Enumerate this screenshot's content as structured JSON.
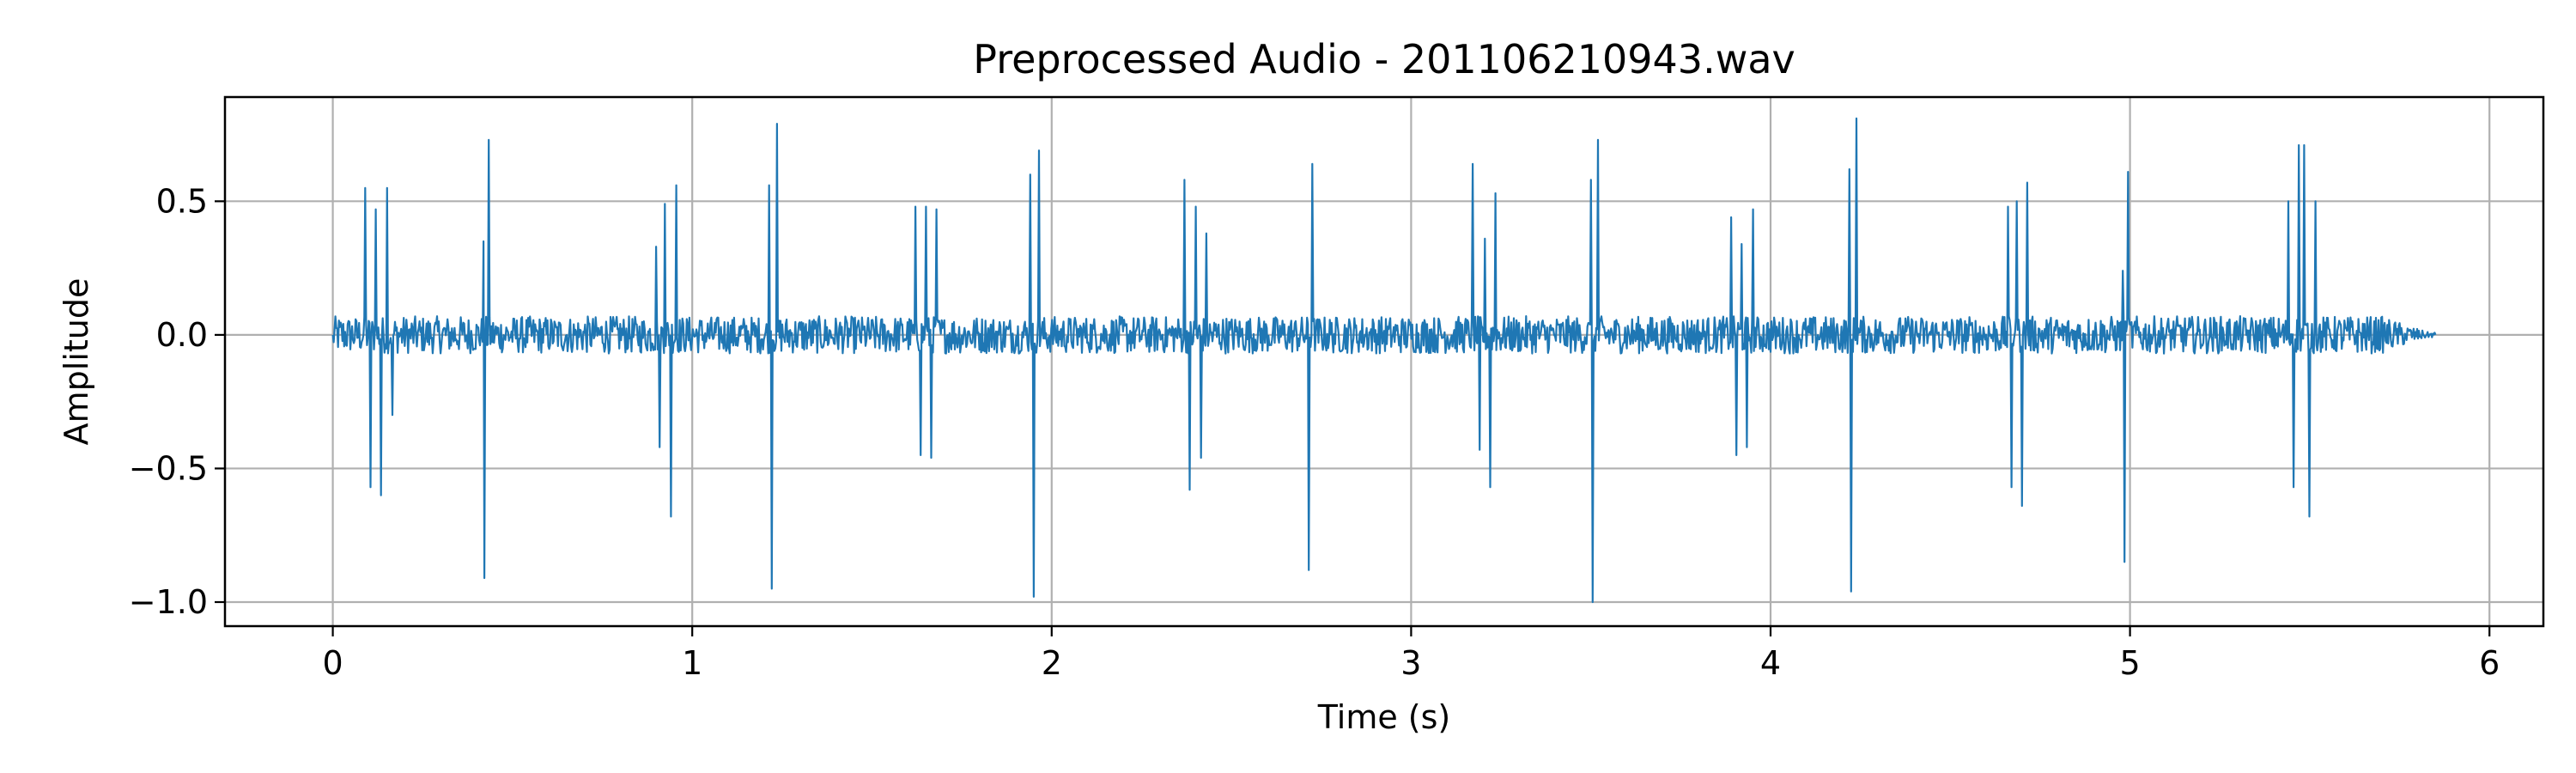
{
  "chart_data": {
    "type": "line",
    "title": "Preprocessed Audio - 201106210943.wav",
    "xlabel": "Time (s)",
    "ylabel": "Amplitude",
    "xlim": [
      -0.3,
      6.15
    ],
    "ylim": [
      -1.09,
      0.89
    ],
    "xticks": [
      0,
      1,
      2,
      3,
      4,
      5,
      6
    ],
    "xtick_labels": [
      "0",
      "1",
      "2",
      "3",
      "4",
      "5",
      "6"
    ],
    "yticks": [
      -1.0,
      -0.5,
      0.0,
      0.5
    ],
    "ytick_labels": [
      "−1.0",
      "−0.5",
      "0.0",
      "0.5"
    ],
    "grid": true,
    "color": "#1f77b4",
    "duration": 5.85,
    "noise_amplitude": 0.07,
    "series": [
      {
        "values": [],
        "peaks": [
          {
            "t": 0.09,
            "v": 0.55
          },
          {
            "t": 0.105,
            "v": -0.57
          },
          {
            "t": 0.12,
            "v": 0.47
          },
          {
            "t": 0.135,
            "v": -0.6
          },
          {
            "t": 0.15,
            "v": 0.55
          },
          {
            "t": 0.165,
            "v": -0.3
          },
          {
            "t": 0.42,
            "v": 0.35
          },
          {
            "t": 0.42,
            "v": -0.91
          },
          {
            "t": 0.435,
            "v": 0.73
          },
          {
            "t": 0.9,
            "v": 0.33
          },
          {
            "t": 0.91,
            "v": -0.42
          },
          {
            "t": 0.925,
            "v": 0.49
          },
          {
            "t": 0.94,
            "v": -0.68
          },
          {
            "t": 0.955,
            "v": 0.56
          },
          {
            "t": 1.215,
            "v": 0.56
          },
          {
            "t": 1.22,
            "v": -0.95
          },
          {
            "t": 1.235,
            "v": 0.79
          },
          {
            "t": 1.62,
            "v": 0.48
          },
          {
            "t": 1.635,
            "v": -0.45
          },
          {
            "t": 1.65,
            "v": 0.48
          },
          {
            "t": 1.665,
            "v": -0.46
          },
          {
            "t": 1.68,
            "v": 0.47
          },
          {
            "t": 1.94,
            "v": 0.6
          },
          {
            "t": 1.95,
            "v": -0.98
          },
          {
            "t": 1.965,
            "v": 0.69
          },
          {
            "t": 2.37,
            "v": 0.58
          },
          {
            "t": 2.385,
            "v": -0.58
          },
          {
            "t": 2.4,
            "v": 0.48
          },
          {
            "t": 2.415,
            "v": -0.46
          },
          {
            "t": 2.43,
            "v": 0.38
          },
          {
            "t": 2.715,
            "v": -0.88
          },
          {
            "t": 2.725,
            "v": 0.64
          },
          {
            "t": 3.17,
            "v": 0.64
          },
          {
            "t": 3.19,
            "v": -0.43
          },
          {
            "t": 3.205,
            "v": 0.36
          },
          {
            "t": 3.22,
            "v": -0.57
          },
          {
            "t": 3.235,
            "v": 0.53
          },
          {
            "t": 3.5,
            "v": 0.58
          },
          {
            "t": 3.505,
            "v": -1.0
          },
          {
            "t": 3.52,
            "v": 0.73
          },
          {
            "t": 3.89,
            "v": 0.44
          },
          {
            "t": 3.905,
            "v": -0.45
          },
          {
            "t": 3.92,
            "v": 0.34
          },
          {
            "t": 3.935,
            "v": -0.42
          },
          {
            "t": 3.95,
            "v": 0.47
          },
          {
            "t": 4.22,
            "v": 0.62
          },
          {
            "t": 4.225,
            "v": -0.96
          },
          {
            "t": 4.24,
            "v": 0.81
          },
          {
            "t": 4.66,
            "v": 0.48
          },
          {
            "t": 4.67,
            "v": -0.57
          },
          {
            "t": 4.685,
            "v": 0.5
          },
          {
            "t": 4.7,
            "v": -0.64
          },
          {
            "t": 4.715,
            "v": 0.57
          },
          {
            "t": 4.98,
            "v": 0.24
          },
          {
            "t": 4.985,
            "v": -0.85
          },
          {
            "t": 4.995,
            "v": 0.61
          },
          {
            "t": 5.44,
            "v": 0.5
          },
          {
            "t": 5.455,
            "v": -0.57
          },
          {
            "t": 5.47,
            "v": 0.71
          },
          {
            "t": 5.485,
            "v": 0.71
          },
          {
            "t": 5.5,
            "v": -0.68
          },
          {
            "t": 5.515,
            "v": 0.5
          }
        ]
      }
    ]
  }
}
